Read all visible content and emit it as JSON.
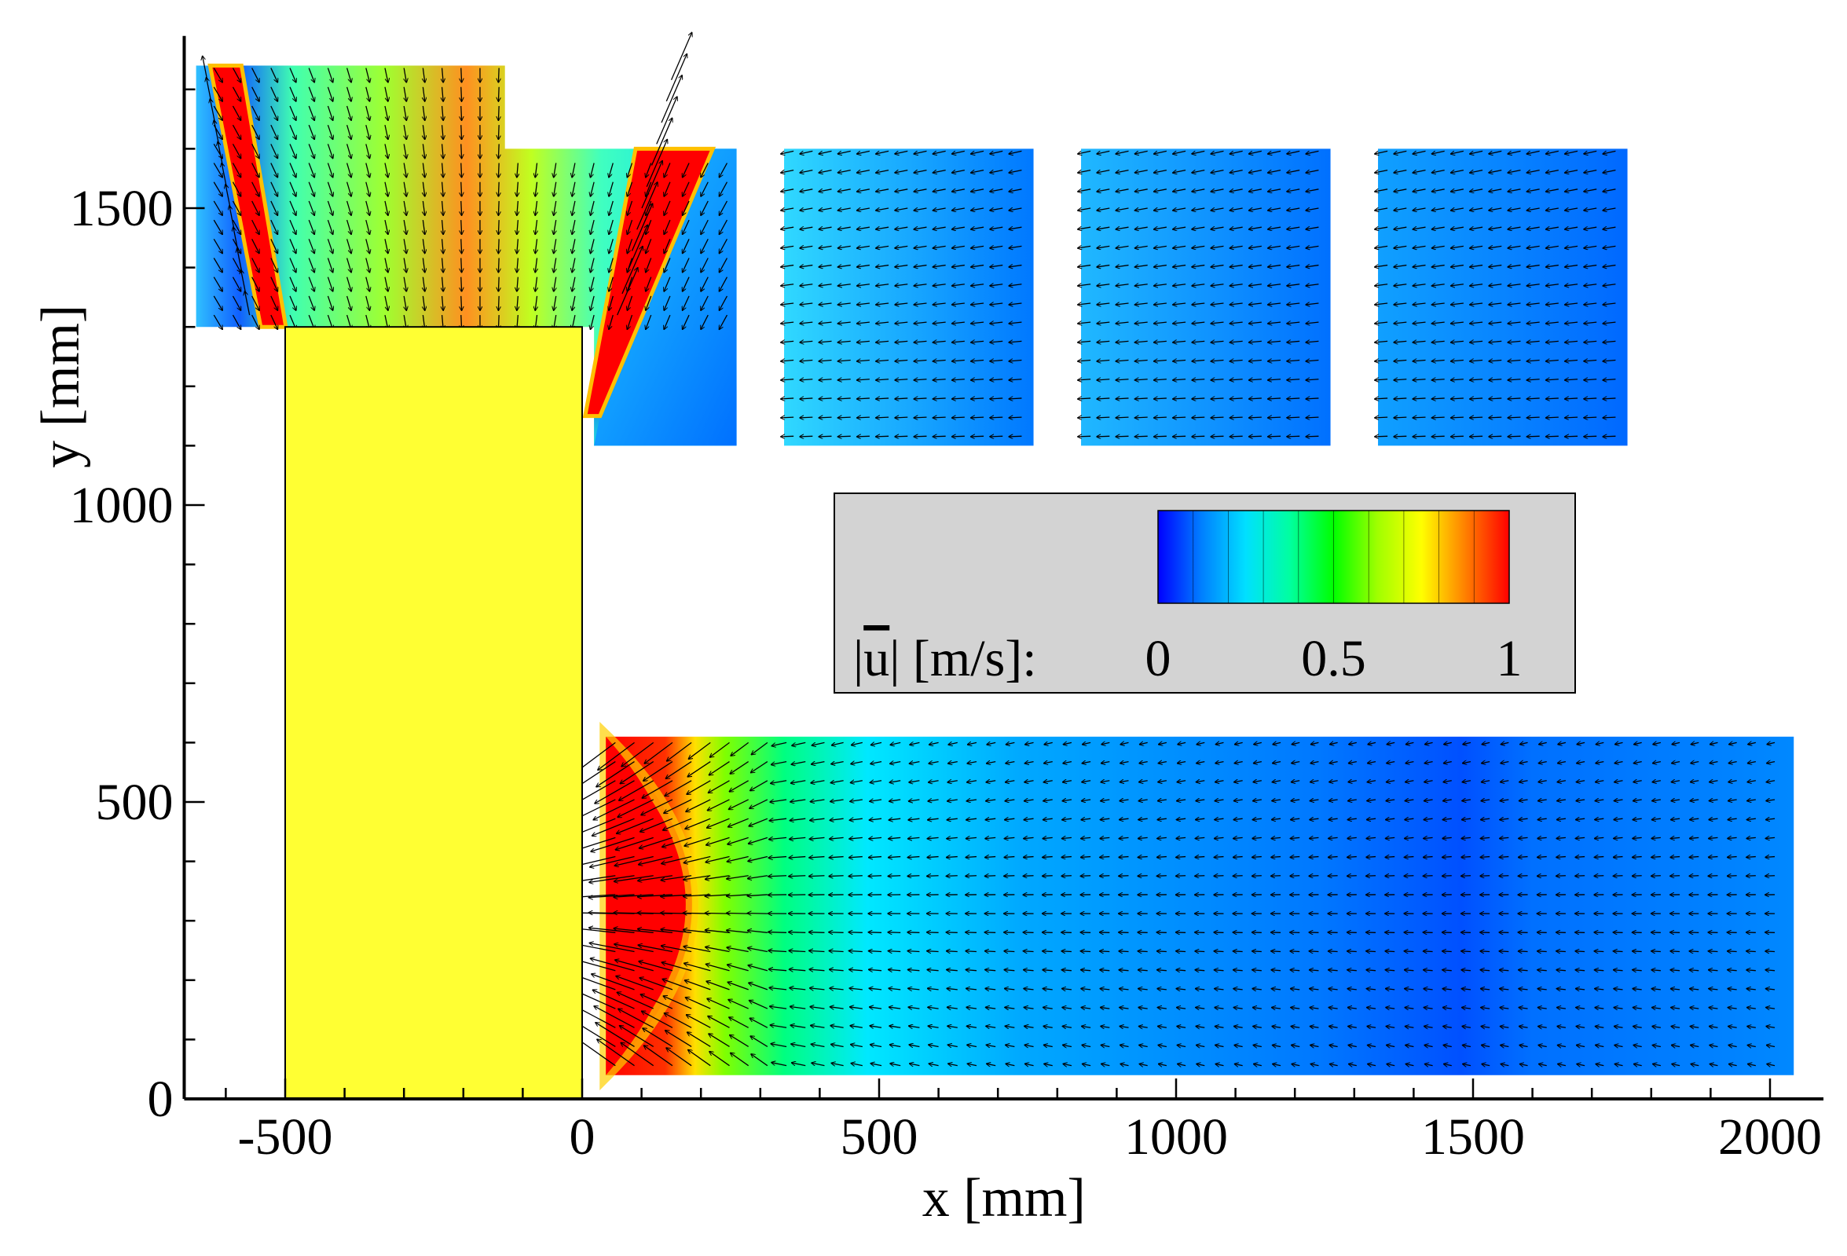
{
  "chart_data": {
    "type": "heatmap",
    "subtype": "velocity-magnitude contour with vector field",
    "title": "",
    "xlabel": "x [mm]",
    "ylabel": "y [mm]",
    "xlim": [
      -670,
      2090
    ],
    "ylim": [
      0,
      1790
    ],
    "x_ticks": [
      {
        "value": -500,
        "label": "-500"
      },
      {
        "value": 0,
        "label": "0"
      },
      {
        "value": 500,
        "label": "500"
      },
      {
        "value": 1000,
        "label": "1000"
      },
      {
        "value": 1500,
        "label": "1500"
      },
      {
        "value": 2000,
        "label": "2000"
      }
    ],
    "y_ticks": [
      {
        "value": 0,
        "label": "0"
      },
      {
        "value": 500,
        "label": "500"
      },
      {
        "value": 1000,
        "label": "1000"
      },
      {
        "value": 1500,
        "label": "1500"
      }
    ],
    "x_minor_step": 100,
    "y_minor_step": 100,
    "grid": false,
    "colorbar": {
      "variable": "|ū| [m/s]:",
      "label_prefix": "|",
      "label_symbol": "u",
      "label_suffix": "| [m/s]:",
      "min": 0,
      "max": 1,
      "levels": 10,
      "tick_labels": [
        {
          "value": 0,
          "label": "0"
        },
        {
          "value": 0.5,
          "label": "0.5"
        },
        {
          "value": 1,
          "label": "1"
        }
      ],
      "placement": "center-right",
      "colormap": [
        "#0000ff",
        "#00a0ff",
        "#00ffff",
        "#00ff80",
        "#00ff00",
        "#80ff00",
        "#ffff00",
        "#ff8000",
        "#ff0000"
      ]
    },
    "obstacle": {
      "name": "block",
      "x": [
        -500,
        0
      ],
      "y": [
        0,
        1300
      ],
      "color": "#ffff33"
    },
    "measurement_windows": [
      {
        "name": "top-left-window",
        "polygon": [
          [
            -650,
            1300
          ],
          [
            -650,
            1740
          ],
          [
            -130,
            1740
          ],
          [
            -130,
            1600
          ],
          [
            260,
            1600
          ],
          [
            260,
            1100
          ],
          [
            20,
            1100
          ],
          [
            20,
            1300
          ]
        ],
        "dominant_speed": 0.55
      },
      {
        "name": "window-2",
        "x": [
          340,
          760
        ],
        "y": [
          1100,
          1600
        ],
        "dominant_speed": 0.22
      },
      {
        "name": "window-3",
        "x": [
          840,
          1260
        ],
        "y": [
          1100,
          1600
        ],
        "dominant_speed": 0.18
      },
      {
        "name": "window-4",
        "x": [
          1340,
          1760
        ],
        "y": [
          1100,
          1600
        ],
        "dominant_speed": 0.16
      },
      {
        "name": "bottom-window",
        "x": [
          40,
          2040
        ],
        "y": [
          40,
          610
        ],
        "dominant_speed": 0.25
      }
    ],
    "jets": [
      {
        "name": "left-inclined-jet",
        "from": [
          -600,
          1740
        ],
        "to": [
          -520,
          1300
        ],
        "speed": 1.0
      },
      {
        "name": "right-inclined-jet",
        "from": [
          120,
          1600
        ],
        "to": [
          10,
          1130
        ],
        "speed": 1.0
      },
      {
        "name": "wall-jet-bottom",
        "center_y": 320,
        "x_range": [
          40,
          200
        ],
        "speed": 1.0
      }
    ]
  }
}
